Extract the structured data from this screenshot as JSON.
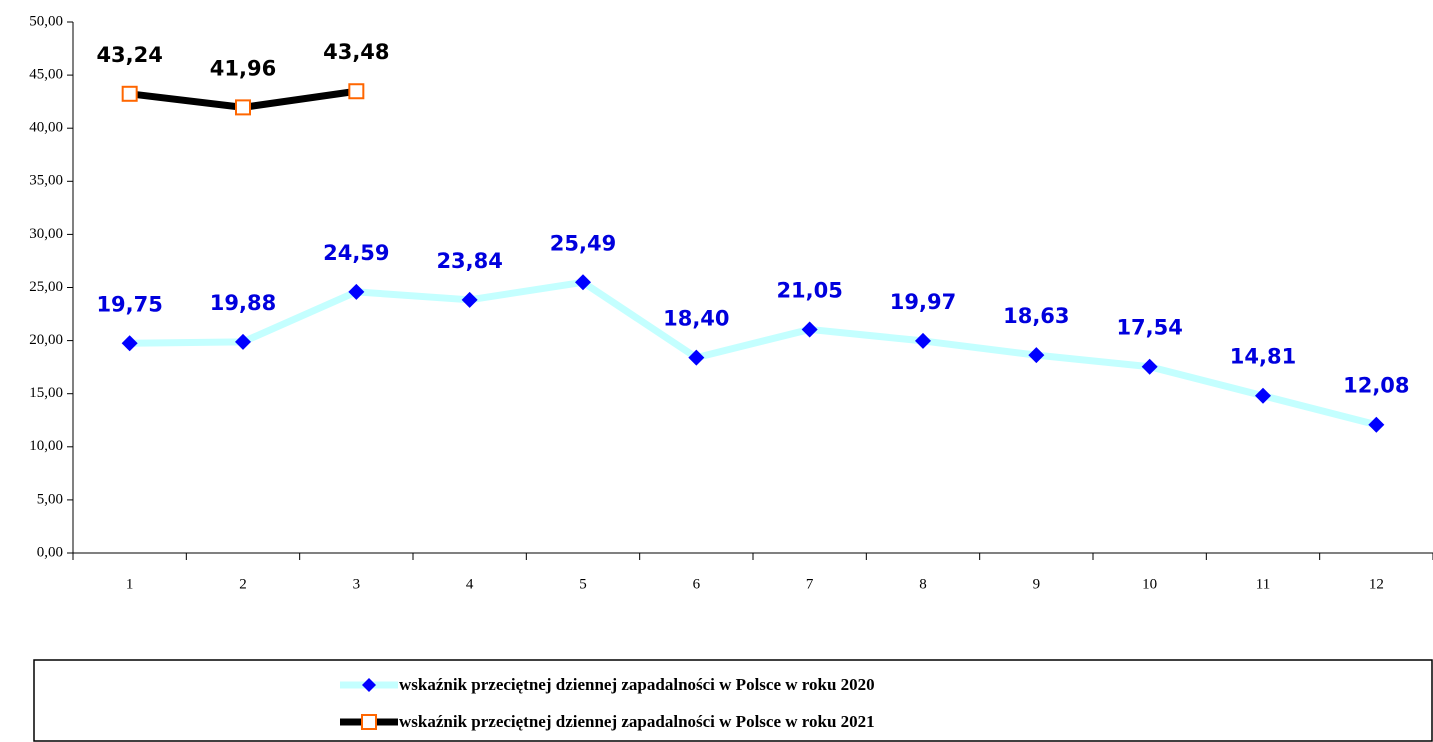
{
  "chart_data": {
    "type": "line",
    "categories": [
      "1",
      "2",
      "3",
      "4",
      "5",
      "6",
      "7",
      "8",
      "9",
      "10",
      "11",
      "12"
    ],
    "series": [
      {
        "name": "wskaźnik przeciętnej dziennej zapadalności w Polsce w roku 2020",
        "color": "#c4ffff",
        "marker_color": "#0000ff",
        "marker": "diamond",
        "label_color": "#0000dd",
        "values": [
          19.75,
          19.88,
          24.59,
          23.84,
          25.49,
          18.4,
          21.05,
          19.97,
          18.63,
          17.54,
          14.81,
          12.08
        ],
        "value_labels": [
          "19,75",
          "19,88",
          "24,59",
          "23,84",
          "25,49",
          "18,40",
          "21,05",
          "19,97",
          "18,63",
          "17,54",
          "14,81",
          "12,08"
        ]
      },
      {
        "name": "wskaźnik przeciętnej dziennej zapadalności w Polsce w roku 2021",
        "color": "#000000",
        "marker_color": "#ff6600",
        "marker": "square",
        "label_color": "#000000",
        "values": [
          43.24,
          41.96,
          43.48,
          null,
          null,
          null,
          null,
          null,
          null,
          null,
          null,
          null
        ],
        "value_labels": [
          "43,24",
          "41,96",
          "43,48",
          null,
          null,
          null,
          null,
          null,
          null,
          null,
          null,
          null
        ]
      }
    ],
    "ylim": [
      0,
      50
    ],
    "yticks": [
      {
        "value": 0,
        "label": "0,00"
      },
      {
        "value": 5,
        "label": "5,00"
      },
      {
        "value": 10,
        "label": "10,00"
      },
      {
        "value": 15,
        "label": "15,00"
      },
      {
        "value": 20,
        "label": "20,00"
      },
      {
        "value": 25,
        "label": "25,00"
      },
      {
        "value": 30,
        "label": "30,00"
      },
      {
        "value": 35,
        "label": "35,00"
      },
      {
        "value": 40,
        "label": "40,00"
      },
      {
        "value": 45,
        "label": "45,00"
      },
      {
        "value": 50,
        "label": "50,00"
      }
    ],
    "grid": false,
    "legend": "bottom"
  }
}
